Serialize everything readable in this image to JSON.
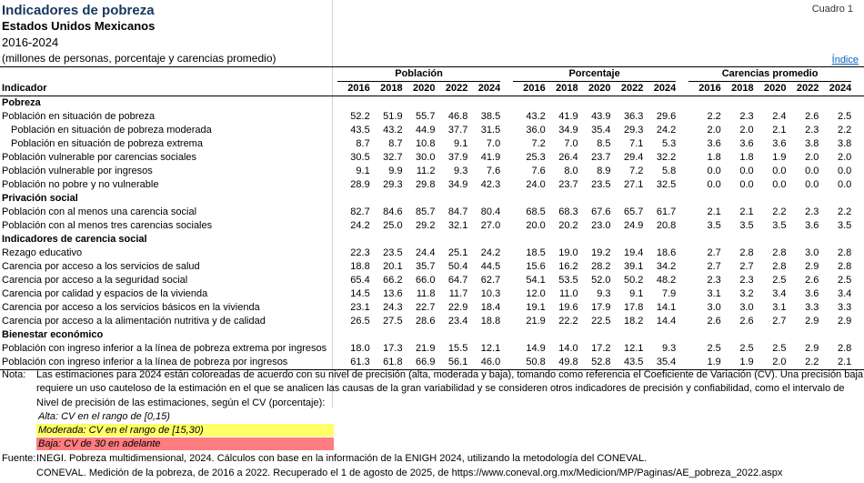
{
  "header": {
    "title": "Indicadores de pobreza",
    "subtitle": "Estados Unidos Mexicanos",
    "period": "2016-2024",
    "units": "(millones de personas, porcentaje y carencias promedio)",
    "cuadro": "Cuadro 1",
    "indice_link": "Índice"
  },
  "table": {
    "indicator_header": "Indicador",
    "groups": [
      "Población",
      "Porcentaje",
      "Carencias promedio"
    ],
    "years": [
      "2016",
      "2018",
      "2020",
      "2022",
      "2024"
    ],
    "rows": [
      {
        "label": "Pobreza",
        "section": true
      },
      {
        "label": "Población en situación de pobreza",
        "values": [
          "52.2",
          "51.9",
          "55.7",
          "46.8",
          "38.5",
          "43.2",
          "41.9",
          "43.9",
          "36.3",
          "29.6",
          "2.2",
          "2.3",
          "2.4",
          "2.6",
          "2.5"
        ]
      },
      {
        "label": "Población en situación de pobreza moderada",
        "indent": true,
        "values": [
          "43.5",
          "43.2",
          "44.9",
          "37.7",
          "31.5",
          "36.0",
          "34.9",
          "35.4",
          "29.3",
          "24.2",
          "2.0",
          "2.0",
          "2.1",
          "2.3",
          "2.2"
        ]
      },
      {
        "label": "Población en situación de pobreza extrema",
        "indent": true,
        "values": [
          "8.7",
          "8.7",
          "10.8",
          "9.1",
          "7.0",
          "7.2",
          "7.0",
          "8.5",
          "7.1",
          "5.3",
          "3.6",
          "3.6",
          "3.6",
          "3.8",
          "3.8"
        ]
      },
      {
        "label": "Población vulnerable por carencias sociales",
        "values": [
          "30.5",
          "32.7",
          "30.0",
          "37.9",
          "41.9",
          "25.3",
          "26.4",
          "23.7",
          "29.4",
          "32.2",
          "1.8",
          "1.8",
          "1.9",
          "2.0",
          "2.0"
        ]
      },
      {
        "label": "Población vulnerable por ingresos",
        "values": [
          "9.1",
          "9.9",
          "11.2",
          "9.3",
          "7.6",
          "7.6",
          "8.0",
          "8.9",
          "7.2",
          "5.8",
          "0.0",
          "0.0",
          "0.0",
          "0.0",
          "0.0"
        ]
      },
      {
        "label": "Población no pobre y no vulnerable",
        "values": [
          "28.9",
          "29.3",
          "29.8",
          "34.9",
          "42.3",
          "24.0",
          "23.7",
          "23.5",
          "27.1",
          "32.5",
          "0.0",
          "0.0",
          "0.0",
          "0.0",
          "0.0"
        ]
      },
      {
        "label": "Privación social",
        "section": true
      },
      {
        "label": "Población con al menos una carencia social",
        "values": [
          "82.7",
          "84.6",
          "85.7",
          "84.7",
          "80.4",
          "68.5",
          "68.3",
          "67.6",
          "65.7",
          "61.7",
          "2.1",
          "2.1",
          "2.2",
          "2.3",
          "2.2"
        ]
      },
      {
        "label": "Población con al menos tres carencias sociales",
        "values": [
          "24.2",
          "25.0",
          "29.2",
          "32.1",
          "27.0",
          "20.0",
          "20.2",
          "23.0",
          "24.9",
          "20.8",
          "3.5",
          "3.5",
          "3.5",
          "3.6",
          "3.5"
        ]
      },
      {
        "label": "Indicadores de carencia social",
        "section": true
      },
      {
        "label": "Rezago educativo",
        "values": [
          "22.3",
          "23.5",
          "24.4",
          "25.1",
          "24.2",
          "18.5",
          "19.0",
          "19.2",
          "19.4",
          "18.6",
          "2.7",
          "2.8",
          "2.8",
          "3.0",
          "2.8"
        ]
      },
      {
        "label": "Carencia por acceso a los servicios de salud",
        "values": [
          "18.8",
          "20.1",
          "35.7",
          "50.4",
          "44.5",
          "15.6",
          "16.2",
          "28.2",
          "39.1",
          "34.2",
          "2.7",
          "2.7",
          "2.8",
          "2.9",
          "2.8"
        ]
      },
      {
        "label": "Carencia por acceso a la seguridad social",
        "values": [
          "65.4",
          "66.2",
          "66.0",
          "64.7",
          "62.7",
          "54.1",
          "53.5",
          "52.0",
          "50.2",
          "48.2",
          "2.3",
          "2.3",
          "2.5",
          "2.6",
          "2.5"
        ]
      },
      {
        "label": "Carencia por calidad y espacios de la vivienda",
        "values": [
          "14.5",
          "13.6",
          "11.8",
          "11.7",
          "10.3",
          "12.0",
          "11.0",
          "9.3",
          "9.1",
          "7.9",
          "3.1",
          "3.2",
          "3.4",
          "3.6",
          "3.4"
        ]
      },
      {
        "label": "Carencia por acceso a los servicios básicos en la vivienda",
        "values": [
          "23.1",
          "24.3",
          "22.7",
          "22.9",
          "18.4",
          "19.1",
          "19.6",
          "17.9",
          "17.8",
          "14.1",
          "3.0",
          "3.0",
          "3.1",
          "3.3",
          "3.3"
        ]
      },
      {
        "label": "Carencia por acceso a la alimentación nutritiva y de calidad",
        "values": [
          "26.5",
          "27.5",
          "28.6",
          "23.4",
          "18.8",
          "21.9",
          "22.2",
          "22.5",
          "18.2",
          "14.4",
          "2.6",
          "2.6",
          "2.7",
          "2.9",
          "2.9"
        ]
      },
      {
        "label": "Bienestar económico",
        "section": true
      },
      {
        "label": "Población con ingreso inferior a la línea de pobreza extrema por ingresos",
        "values": [
          "18.0",
          "17.3",
          "21.9",
          "15.5",
          "12.1",
          "14.9",
          "14.0",
          "17.2",
          "12.1",
          "9.3",
          "2.5",
          "2.5",
          "2.5",
          "2.9",
          "2.8"
        ]
      },
      {
        "label": "Población con ingreso inferior a la línea de pobreza por ingresos",
        "values": [
          "61.3",
          "61.8",
          "66.9",
          "56.1",
          "46.0",
          "50.8",
          "49.8",
          "52.8",
          "43.5",
          "35.4",
          "1.9",
          "1.9",
          "2.0",
          "2.2",
          "2.1"
        ]
      }
    ]
  },
  "notes": {
    "nota_label": "Nota:",
    "nota_line1": "Las estimaciones para 2024 están coloreadas de acuerdo con su nivel de precisión (alta, moderada y baja), tomando como referencia el Coeficiente de Variación (CV). Una precisión baja",
    "nota_line2": "requiere un uso cauteloso de la estimación en el que se analicen las causas de la gran variabilidad y se consideren otros indicadores de precisión y confiabilidad, como el intervalo de",
    "nota_line3": "Nivel de precisión de las estimaciones, según el CV (porcentaje):",
    "legend": [
      {
        "label": "Alta: CV en el rango de [0,15)",
        "color": "#FFFFFF"
      },
      {
        "label": "Moderada: CV en el rango de [15,30)",
        "color": "#FFFF66"
      },
      {
        "label": "Baja: CV de 30 en adelante",
        "color": "#FF7C80"
      }
    ],
    "fuente_label": "Fuente:",
    "fuente_line1": "INEGI. Pobreza multidimensional, 2024. Cálculos con base en la información de la ENIGH 2024, utilizando la metodología del CONEVAL.",
    "fuente_line2": "CONEVAL. Medición de la pobreza, de 2016 a 2022. Recuperado el 1 de agosto de 2025, de https://www.coneval.org.mx/Medicion/MP/Paginas/AE_pobreza_2022.aspx"
  }
}
